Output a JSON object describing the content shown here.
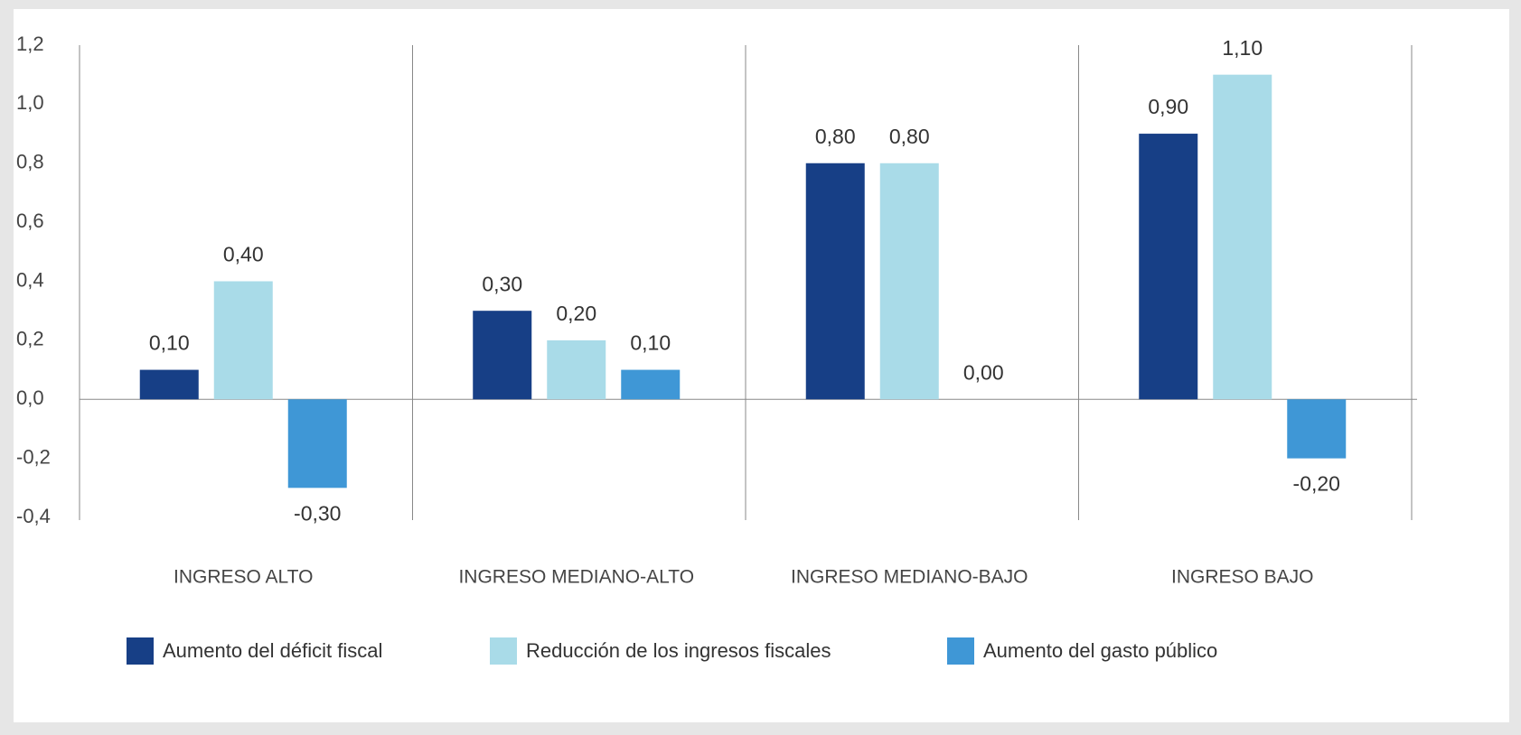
{
  "chart_data": {
    "type": "bar",
    "categories": [
      "INGRESO ALTO",
      "INGRESO MEDIANO-ALTO",
      "INGRESO MEDIANO-BAJO",
      "INGRESO BAJO"
    ],
    "series": [
      {
        "name": "Aumento del déficit fiscal",
        "color": "#173f86",
        "values": [
          0.1,
          0.3,
          0.8,
          0.9
        ],
        "value_labels": [
          "0,10",
          "0,30",
          "0,80",
          "0,90"
        ]
      },
      {
        "name": "Reducción de los ingresos fiscales",
        "color": "#a9dbe8",
        "values": [
          0.4,
          0.2,
          0.8,
          1.1
        ],
        "value_labels": [
          "0,40",
          "0,20",
          "0,80",
          "1,10"
        ]
      },
      {
        "name": "Aumento del gasto público",
        "color": "#3f97d6",
        "values": [
          -0.3,
          0.1,
          0.0,
          -0.2
        ],
        "value_labels": [
          "-0,30",
          "0,10",
          "0,00",
          "-0,20"
        ]
      }
    ],
    "ylim": [
      -0.4,
      1.2
    ],
    "yticks": [
      {
        "value": -0.4,
        "label": "-0,4"
      },
      {
        "value": -0.2,
        "label": "-0,2"
      },
      {
        "value": 0,
        "label": "0,0"
      },
      {
        "value": 0.2,
        "label": "0,2"
      },
      {
        "value": 0.4,
        "label": "0,4"
      },
      {
        "value": 0.6,
        "label": "0,6"
      },
      {
        "value": 0.8,
        "label": "0,8"
      },
      {
        "value": 1.0,
        "label": "1,0"
      },
      {
        "value": 1.2,
        "label": "1,2"
      }
    ],
    "legend": "bottom"
  }
}
